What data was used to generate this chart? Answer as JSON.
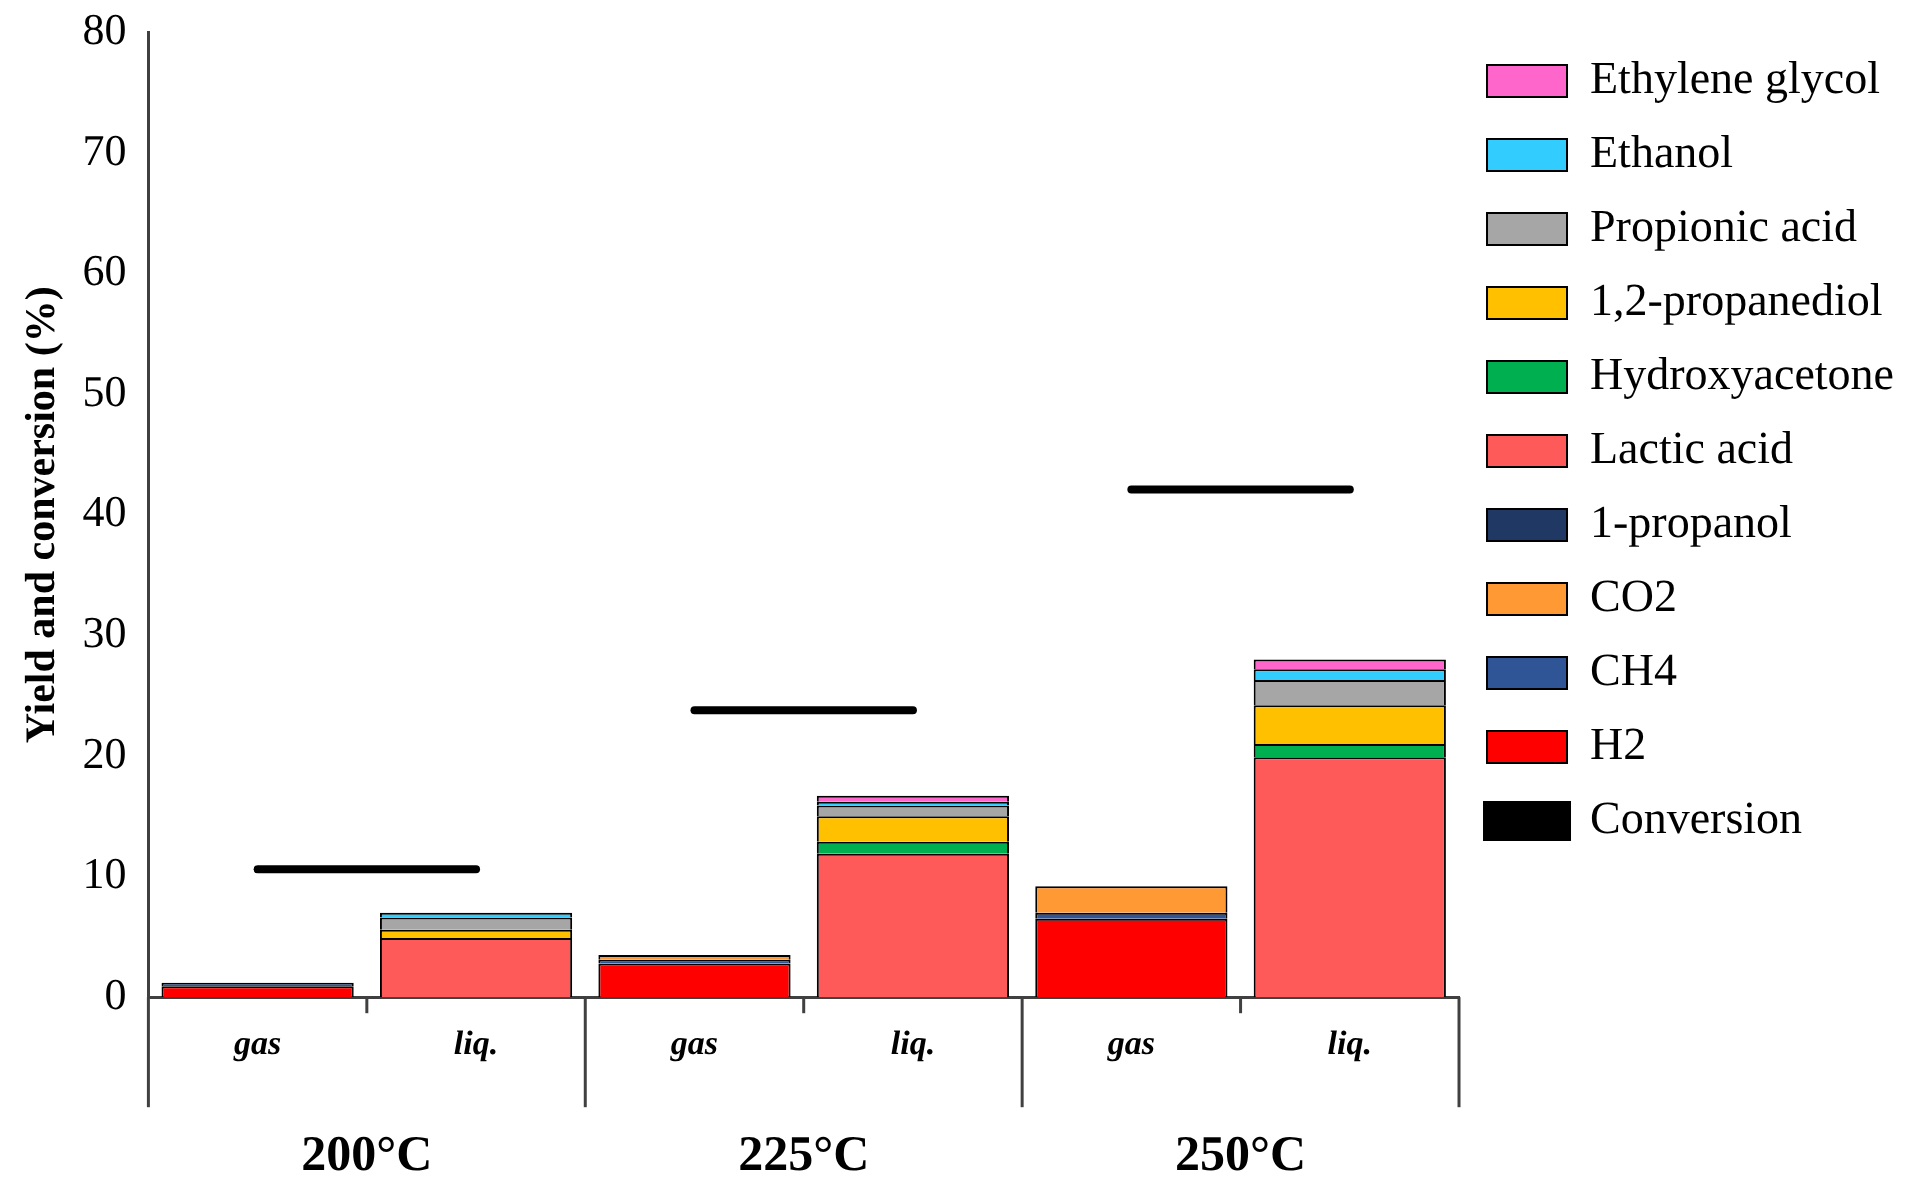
{
  "chart_data": {
    "type": "bar",
    "stacked": true,
    "ylabel": "Yield and conversion (%)",
    "categories": [
      "gas",
      "liq.",
      "gas",
      "liq.",
      "gas",
      "liq."
    ],
    "annotations": [
      "200°C",
      "225°C",
      "250°C"
    ],
    "ylim": [
      0,
      80
    ],
    "yticks": [
      0,
      10,
      20,
      30,
      40,
      50,
      60,
      70,
      80
    ],
    "grid": false,
    "legend": "right",
    "series": [
      {
        "name": "H2",
        "color": "#ff0000",
        "values": [
          0.9,
          0,
          2.8,
          0,
          6.5,
          0
        ]
      },
      {
        "name": "CH4",
        "color": "#2f5597",
        "values": [
          0.3,
          0,
          0.3,
          0,
          0.5,
          0
        ]
      },
      {
        "name": "CO2",
        "color": "#ff9933",
        "values": [
          0,
          0,
          0.4,
          0,
          2.2,
          0
        ]
      },
      {
        "name": "1-propanol",
        "color": "#1f3864",
        "values": [
          0,
          0,
          0,
          0,
          0,
          0
        ]
      },
      {
        "name": "Lactic acid",
        "color": "#ff5a5a",
        "values": [
          0,
          4.9,
          0,
          11.9,
          0,
          19.9
        ]
      },
      {
        "name": "Hydroxyacetone",
        "color": "#00b050",
        "values": [
          0,
          0,
          0,
          1.0,
          0,
          1.1
        ]
      },
      {
        "name": "1,2-propanediol",
        "color": "#ffc000",
        "values": [
          0,
          0.7,
          0,
          2.1,
          0,
          3.2
        ]
      },
      {
        "name": "Propionic acid",
        "color": "#a6a6a6",
        "values": [
          0,
          1.0,
          0,
          0.9,
          0,
          2.1
        ]
      },
      {
        "name": "Ethanol",
        "color": "#33ccff",
        "values": [
          0,
          0.4,
          0,
          0.3,
          0,
          0.9
        ]
      },
      {
        "name": "Ethylene glycol",
        "color": "#ff66cc",
        "values": [
          0,
          0,
          0,
          0.5,
          0,
          0.8
        ]
      },
      {
        "name": "Conversion",
        "type": "line",
        "color": "#000000",
        "values": [
          10.6,
          10.6,
          23.8,
          23.8,
          42.1,
          42.1
        ]
      }
    ]
  }
}
